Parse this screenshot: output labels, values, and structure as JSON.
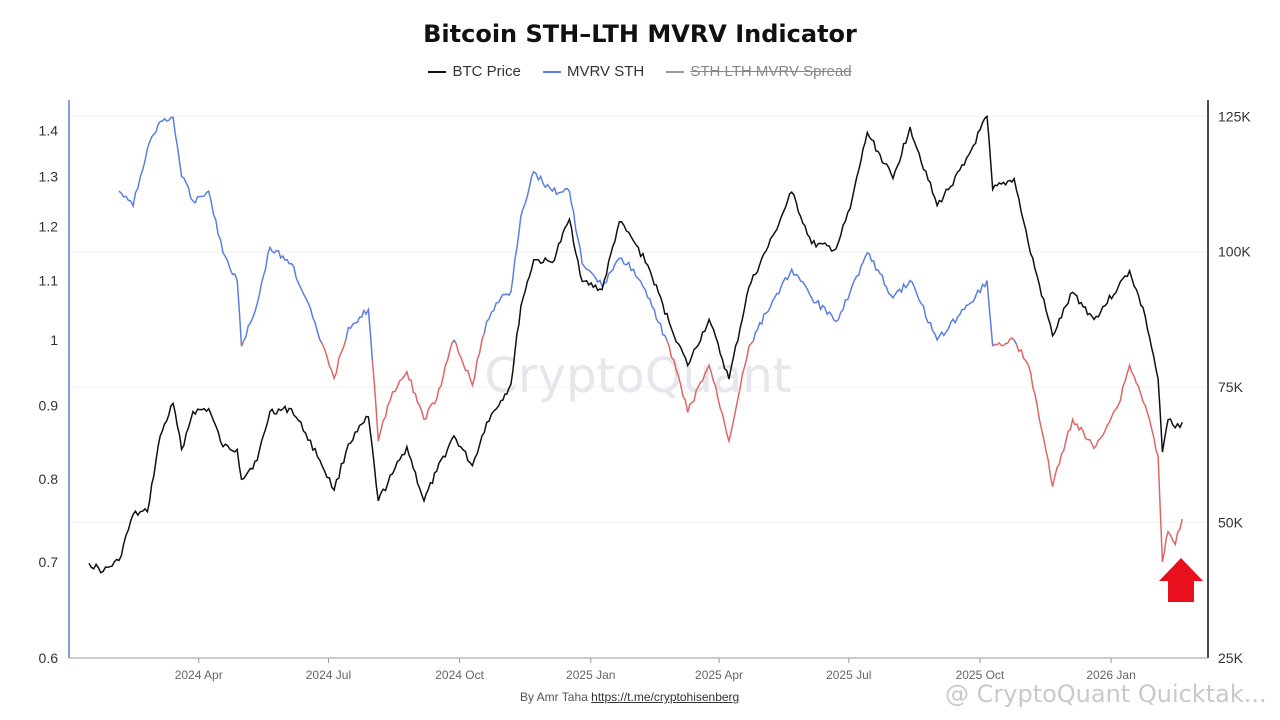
{
  "chart_data": {
    "type": "line",
    "title": "Bitcoin STH–LTH MVRV Indicator",
    "legend": [
      {
        "name": "BTC Price",
        "color": "#111111",
        "visible": true
      },
      {
        "name": "MVRV STH",
        "color": "#5b7fe0",
        "visible": true
      },
      {
        "name": "STH LTH MVRV Spread",
        "color": "#999999",
        "visible": false
      }
    ],
    "x_ticks": [
      "2024 Apr",
      "2024 Jul",
      "2024 Oct",
      "2025 Jan",
      "2025 Apr",
      "2025 Jul",
      "2025 Oct",
      "2026 Jan"
    ],
    "y_left": {
      "scale": "log",
      "range": [
        0.6,
        1.47
      ],
      "ticks": [
        "1.4",
        "1.3",
        "1.2",
        "1.1",
        "1",
        "0.9",
        "0.8",
        "0.7",
        "0.6"
      ]
    },
    "y_right": {
      "range": [
        25000,
        128000
      ],
      "ticks": [
        "125K",
        "100K",
        "75K",
        "50K",
        "25K"
      ]
    },
    "mvrv_threshold": 1.0,
    "mvrv_colors": {
      "above": "#5b7fe0",
      "below": "#e06666"
    },
    "series": [
      {
        "name": "BTC Price",
        "axis": "right",
        "color": "#111111",
        "points": [
          [
            "2024-01-15",
            42500
          ],
          [
            "2024-01-25",
            41000
          ],
          [
            "2024-02-05",
            43000
          ],
          [
            "2024-02-15",
            51500
          ],
          [
            "2024-02-25",
            52000
          ],
          [
            "2024-03-05",
            66000
          ],
          [
            "2024-03-14",
            72000
          ],
          [
            "2024-03-20",
            63500
          ],
          [
            "2024-03-28",
            70500
          ],
          [
            "2024-04-08",
            71000
          ],
          [
            "2024-04-18",
            64000
          ],
          [
            "2024-04-28",
            63500
          ],
          [
            "2024-05-01",
            58000
          ],
          [
            "2024-05-12",
            61500
          ],
          [
            "2024-05-21",
            70500
          ],
          [
            "2024-06-05",
            71000
          ],
          [
            "2024-06-15",
            66500
          ],
          [
            "2024-06-25",
            61500
          ],
          [
            "2024-07-05",
            56000
          ],
          [
            "2024-07-15",
            64500
          ],
          [
            "2024-07-29",
            69500
          ],
          [
            "2024-08-05",
            54000
          ],
          [
            "2024-08-15",
            59000
          ],
          [
            "2024-08-25",
            64000
          ],
          [
            "2024-09-06",
            54000
          ],
          [
            "2024-09-15",
            59500
          ],
          [
            "2024-09-27",
            66000
          ],
          [
            "2024-10-10",
            60500
          ],
          [
            "2024-10-20",
            68500
          ],
          [
            "2024-10-30",
            72500
          ],
          [
            "2024-11-06",
            75500
          ],
          [
            "2024-11-13",
            90000
          ],
          [
            "2024-11-22",
            98500
          ],
          [
            "2024-12-05",
            98000
          ],
          [
            "2024-12-17",
            106000
          ],
          [
            "2024-12-26",
            94500
          ],
          [
            "2025-01-09",
            93000
          ],
          [
            "2025-01-21",
            105500
          ],
          [
            "2025-01-31",
            102000
          ],
          [
            "2025-02-10",
            97500
          ],
          [
            "2025-02-25",
            87000
          ],
          [
            "2025-03-10",
            79000
          ],
          [
            "2025-03-25",
            87500
          ],
          [
            "2025-04-08",
            76500
          ],
          [
            "2025-04-22",
            93500
          ],
          [
            "2025-05-10",
            103500
          ],
          [
            "2025-05-22",
            111000
          ],
          [
            "2025-06-05",
            101500
          ],
          [
            "2025-06-22",
            100500
          ],
          [
            "2025-07-02",
            108000
          ],
          [
            "2025-07-14",
            122000
          ],
          [
            "2025-08-01",
            113500
          ],
          [
            "2025-08-13",
            123000
          ],
          [
            "2025-09-01",
            108500
          ],
          [
            "2025-09-20",
            116000
          ],
          [
            "2025-10-06",
            125000
          ],
          [
            "2025-10-10",
            111500
          ],
          [
            "2025-10-25",
            113500
          ],
          [
            "2025-11-04",
            101500
          ],
          [
            "2025-11-21",
            84500
          ],
          [
            "2025-12-05",
            92500
          ],
          [
            "2025-12-20",
            87500
          ],
          [
            "2026-01-06",
            93500
          ],
          [
            "2026-01-14",
            96500
          ],
          [
            "2026-01-25",
            88000
          ],
          [
            "2026-02-03",
            76500
          ],
          [
            "2026-02-06",
            63000
          ],
          [
            "2026-02-10",
            69000
          ],
          [
            "2026-02-15",
            67500
          ],
          [
            "2026-02-20",
            68500
          ]
        ]
      },
      {
        "name": "MVRV STH",
        "axis": "left",
        "points": [
          [
            "2024-02-05",
            1.27
          ],
          [
            "2024-02-15",
            1.24
          ],
          [
            "2024-02-25",
            1.36
          ],
          [
            "2024-03-05",
            1.42
          ],
          [
            "2024-03-14",
            1.43
          ],
          [
            "2024-03-20",
            1.3
          ],
          [
            "2024-03-28",
            1.25
          ],
          [
            "2024-04-08",
            1.27
          ],
          [
            "2024-04-18",
            1.15
          ],
          [
            "2024-04-28",
            1.1
          ],
          [
            "2024-05-01",
            0.99
          ],
          [
            "2024-05-12",
            1.06
          ],
          [
            "2024-05-21",
            1.16
          ],
          [
            "2024-06-05",
            1.13
          ],
          [
            "2024-06-15",
            1.07
          ],
          [
            "2024-06-25",
            1.0
          ],
          [
            "2024-07-05",
            0.94
          ],
          [
            "2024-07-15",
            1.02
          ],
          [
            "2024-07-29",
            1.05
          ],
          [
            "2024-08-05",
            0.85
          ],
          [
            "2024-08-15",
            0.92
          ],
          [
            "2024-08-25",
            0.95
          ],
          [
            "2024-09-06",
            0.88
          ],
          [
            "2024-09-15",
            0.91
          ],
          [
            "2024-09-27",
            1.0
          ],
          [
            "2024-10-10",
            0.93
          ],
          [
            "2024-10-20",
            1.03
          ],
          [
            "2024-10-30",
            1.07
          ],
          [
            "2024-11-06",
            1.08
          ],
          [
            "2024-11-13",
            1.22
          ],
          [
            "2024-11-22",
            1.31
          ],
          [
            "2024-12-05",
            1.27
          ],
          [
            "2024-12-17",
            1.27
          ],
          [
            "2024-12-26",
            1.13
          ],
          [
            "2025-01-09",
            1.09
          ],
          [
            "2025-01-21",
            1.14
          ],
          [
            "2025-01-31",
            1.12
          ],
          [
            "2025-02-10",
            1.07
          ],
          [
            "2025-02-25",
            0.99
          ],
          [
            "2025-03-10",
            0.89
          ],
          [
            "2025-03-25",
            0.96
          ],
          [
            "2025-04-08",
            0.85
          ],
          [
            "2025-04-22",
            0.99
          ],
          [
            "2025-05-10",
            1.07
          ],
          [
            "2025-05-22",
            1.12
          ],
          [
            "2025-06-05",
            1.07
          ],
          [
            "2025-06-22",
            1.03
          ],
          [
            "2025-07-02",
            1.08
          ],
          [
            "2025-07-14",
            1.15
          ],
          [
            "2025-08-01",
            1.07
          ],
          [
            "2025-08-13",
            1.1
          ],
          [
            "2025-09-01",
            1.0
          ],
          [
            "2025-09-20",
            1.05
          ],
          [
            "2025-10-06",
            1.1
          ],
          [
            "2025-10-10",
            0.99
          ],
          [
            "2025-10-25",
            1.0
          ],
          [
            "2025-11-04",
            0.96
          ],
          [
            "2025-11-21",
            0.79
          ],
          [
            "2025-12-05",
            0.88
          ],
          [
            "2025-12-20",
            0.84
          ],
          [
            "2026-01-06",
            0.9
          ],
          [
            "2026-01-14",
            0.96
          ],
          [
            "2026-01-25",
            0.9
          ],
          [
            "2026-02-03",
            0.83
          ],
          [
            "2026-02-06",
            0.7
          ],
          [
            "2026-02-10",
            0.735
          ],
          [
            "2026-02-15",
            0.72
          ],
          [
            "2026-02-20",
            0.75
          ]
        ]
      }
    ]
  },
  "watermark_center": "CryptoQuant",
  "watermark_corner": "@ CryptoQuant Quicktak...",
  "footer": {
    "text": "By Amr Taha",
    "link": "https://t.me/cryptohisenberg"
  },
  "annotation": {
    "type": "arrow-up",
    "color": "#e8101c"
  }
}
